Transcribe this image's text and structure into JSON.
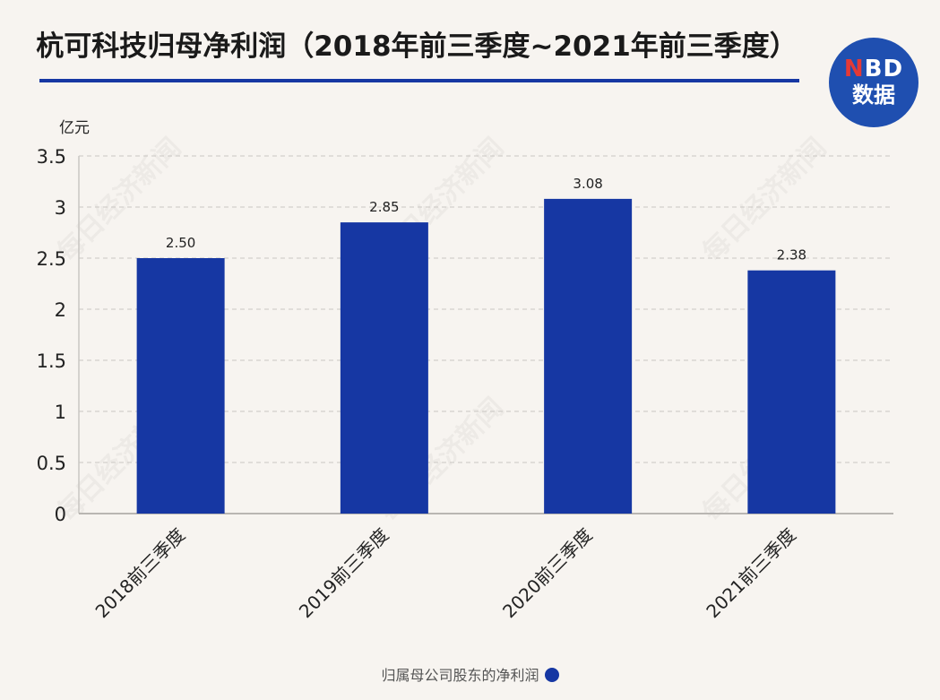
{
  "title": "杭可科技归母净利润（2018年前三季度~2021年前三季度）",
  "logo": {
    "n": "N",
    "bd": "BD",
    "text": "数据"
  },
  "chart_data": {
    "type": "bar",
    "title": "杭可科技归母净利润（2018年前三季度~2021年前三季度）",
    "ylabel": "亿元",
    "xlabel": "",
    "categories": [
      "2018前三季度",
      "2019前三季度",
      "2020前三季度",
      "2021前三季度"
    ],
    "series": [
      {
        "name": "归属母公司股东的净利润",
        "values": [
          2.5,
          2.85,
          3.08,
          2.38
        ],
        "labels": [
          "2.50",
          "2.85",
          "3.08",
          "2.38"
        ]
      }
    ],
    "ylim": [
      0,
      3.5
    ],
    "yticks": [
      "0",
      "0.5",
      "1",
      "1.5",
      "2",
      "2.5",
      "3",
      "3.5"
    ],
    "grid": true,
    "legend_position": "bottom-center",
    "bar_color": "#1637a3"
  },
  "watermark": "每日经济新闻"
}
